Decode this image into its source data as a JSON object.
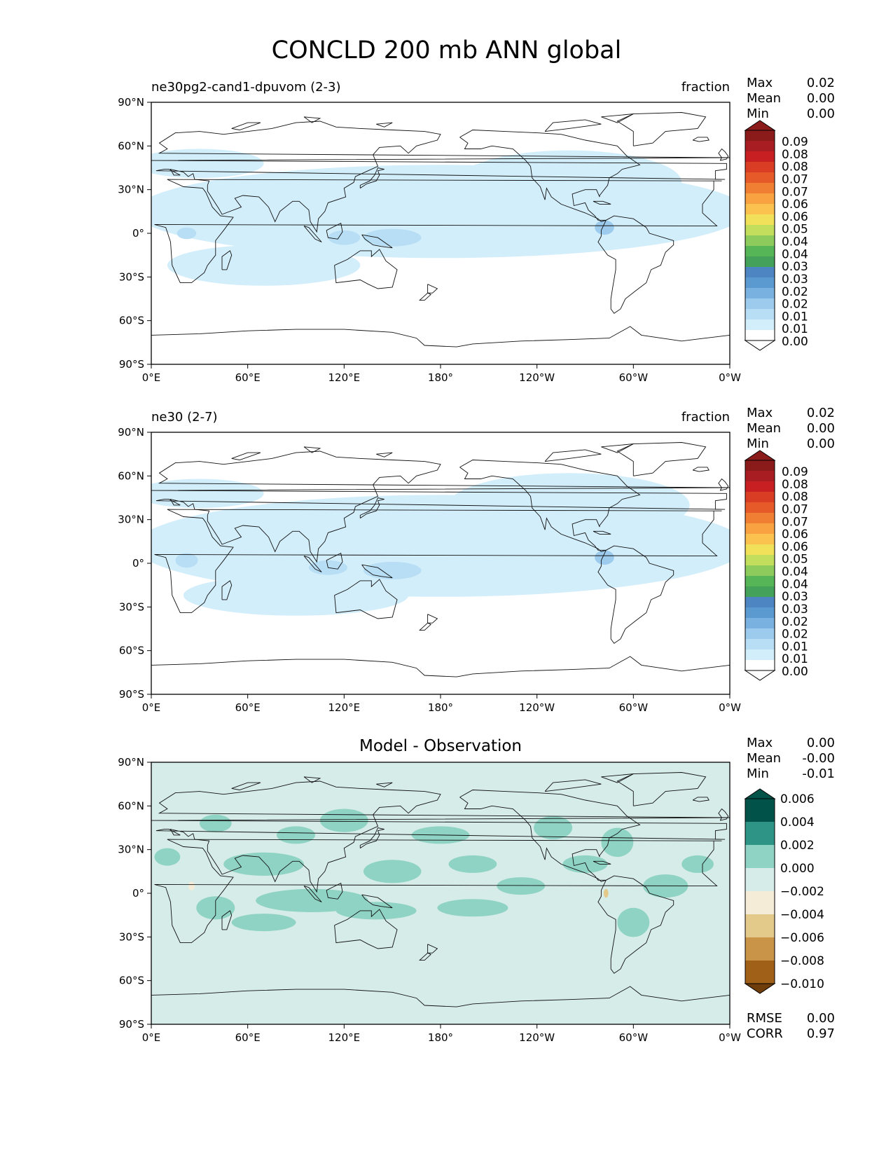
{
  "title": "CONCLD 200 mb ANN global",
  "colors": {
    "seq": [
      "#ffffff",
      "#d3eefb",
      "#b7def5",
      "#9ccbee",
      "#79b2e0",
      "#5a9ad0",
      "#4c85c2",
      "#44a15a",
      "#56b557",
      "#8dcb5d",
      "#c3dd5d",
      "#f1e15a",
      "#fbc24f",
      "#f9a241",
      "#f07f33",
      "#e65a2a",
      "#d93d24",
      "#c82022",
      "#a81d21",
      "#8b1a1a"
    ],
    "div": [
      "#6f3d0a",
      "#a06017",
      "#c99447",
      "#e3ca8b",
      "#f4ecd6",
      "#d6ece8",
      "#8fd3c4",
      "#2e9486",
      "#01534a"
    ],
    "land": "#ffffff"
  },
  "panels": [
    {
      "id": "model",
      "title_left": "ne30pg2-cand1-dpuvom (2-3)",
      "title_right": "fraction",
      "stats": [
        {
          "label": "Max",
          "value": "0.02"
        },
        {
          "label": "Mean",
          "value": "0.00"
        },
        {
          "label": "Min",
          "value": "0.00"
        }
      ],
      "colorbar": {
        "type": "seq",
        "labels": [
          "0.09",
          "0.08",
          "0.08",
          "0.07",
          "0.07",
          "0.06",
          "0.06",
          "0.05",
          "0.04",
          "0.04",
          "0.03",
          "0.03",
          "0.02",
          "0.02",
          "0.01",
          "0.01",
          "0.00"
        ]
      }
    },
    {
      "id": "obs",
      "title_left": "ne30 (2-7)",
      "title_right": "fraction",
      "stats": [
        {
          "label": "Max",
          "value": "0.02"
        },
        {
          "label": "Mean",
          "value": "0.00"
        },
        {
          "label": "Min",
          "value": "0.00"
        }
      ],
      "colorbar": {
        "type": "seq",
        "labels": [
          "0.09",
          "0.08",
          "0.08",
          "0.07",
          "0.07",
          "0.06",
          "0.06",
          "0.05",
          "0.04",
          "0.04",
          "0.03",
          "0.03",
          "0.02",
          "0.02",
          "0.01",
          "0.01",
          "0.00"
        ]
      }
    },
    {
      "id": "diff",
      "title_center": "Model - Observation",
      "stats": [
        {
          "label": "Max",
          "value": "0.00"
        },
        {
          "label": "Mean",
          "value": "-0.00"
        },
        {
          "label": "Min",
          "value": "-0.01"
        }
      ],
      "colorbar": {
        "type": "div",
        "labels": [
          "0.006",
          "0.004",
          "0.002",
          "0.000",
          "−0.002",
          "−0.004",
          "−0.006",
          "−0.008",
          "−0.010"
        ]
      },
      "footer": [
        {
          "label": "RMSE",
          "value": "0.00"
        },
        {
          "label": "CORR",
          "value": "0.97"
        }
      ]
    }
  ],
  "chart_data": {
    "type": "heatmap",
    "title": "CONCLD 200 mb ANN global",
    "variable": "CONCLD",
    "units": "fraction",
    "xlabel": "",
    "ylabel": "",
    "x_ticks": [
      "0°E",
      "60°E",
      "120°E",
      "180°",
      "120°W",
      "60°W",
      "0°W"
    ],
    "y_ticks": [
      "90°N",
      "60°N",
      "30°N",
      "0°",
      "30°S",
      "60°S",
      "90°S"
    ],
    "xlim": [
      0,
      360
    ],
    "ylim": [
      -90,
      90
    ],
    "maps": [
      {
        "name": "ne30pg2-cand1-dpuvom (2-3)",
        "max": 0.02,
        "mean": 0.0,
        "min": 0.0,
        "clim": [
          0.0,
          0.09
        ]
      },
      {
        "name": "ne30 (2-7)",
        "max": 0.02,
        "mean": 0.0,
        "min": 0.0,
        "clim": [
          0.0,
          0.09
        ]
      },
      {
        "name": "Model - Observation",
        "max": 0.0,
        "mean": -0.0,
        "min": -0.01,
        "rmse": 0.0,
        "corr": 0.97,
        "clim": [
          -0.01,
          0.006
        ]
      }
    ]
  }
}
